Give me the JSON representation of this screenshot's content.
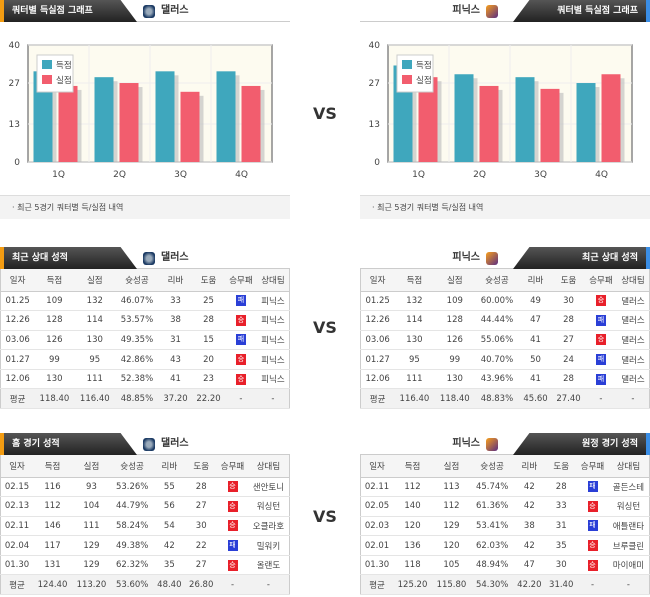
{
  "vs": "VS",
  "left": {
    "team": "댈러스",
    "graph_title": "쿼터별 득실점 그래프",
    "caption": "최근 5경기 쿼터별 득/실점 내역",
    "h2h_title": "최근 상대 성적",
    "split_title": "홈 경기 성적"
  },
  "right": {
    "team": "피닉스",
    "graph_title": "쿼터별 득실점 그래프",
    "caption": "최근 5경기 쿼터별 득/실점 내역",
    "h2h_title": "최근 상대 성적",
    "split_title": "원정 경기 성적"
  },
  "columns": [
    "일자",
    "득점",
    "실점",
    "슛성공",
    "리바",
    "도움",
    "승무패",
    "상대팀"
  ],
  "colors": {
    "scored": "#3fa7bd",
    "conceded": "#f25d6e",
    "win": "#e8202a",
    "loss": "#2a3fd6"
  },
  "chart_data": [
    {
      "type": "bar",
      "team": "댈러스",
      "categories": [
        "1Q",
        "2Q",
        "3Q",
        "4Q"
      ],
      "ylim": [
        0,
        40
      ],
      "yticks": [
        "0",
        "13",
        "27",
        "40"
      ],
      "legend": "top-left",
      "series": [
        {
          "name": "득점",
          "values": [
            31,
            29,
            31,
            31
          ]
        },
        {
          "name": "실점",
          "values": [
            26,
            27,
            24,
            26
          ]
        }
      ]
    },
    {
      "type": "bar",
      "team": "피닉스",
      "categories": [
        "1Q",
        "2Q",
        "3Q",
        "4Q"
      ],
      "ylim": [
        0,
        40
      ],
      "yticks": [
        "0",
        "13",
        "27",
        "40"
      ],
      "legend": "top-left",
      "series": [
        {
          "name": "득점",
          "values": [
            33,
            30,
            29,
            27
          ]
        },
        {
          "name": "실점",
          "values": [
            29,
            26,
            25,
            30
          ]
        }
      ]
    }
  ],
  "left_h2h": {
    "rows": [
      [
        "01.25",
        "109",
        "132",
        "46.07%",
        "33",
        "25",
        "패",
        "피닉스"
      ],
      [
        "12.26",
        "128",
        "114",
        "53.57%",
        "38",
        "28",
        "승",
        "피닉스"
      ],
      [
        "03.06",
        "126",
        "130",
        "49.35%",
        "31",
        "15",
        "패",
        "피닉스"
      ],
      [
        "01.27",
        "99",
        "95",
        "42.86%",
        "43",
        "20",
        "승",
        "피닉스"
      ],
      [
        "12.06",
        "130",
        "111",
        "52.38%",
        "41",
        "23",
        "승",
        "피닉스"
      ]
    ],
    "avg": [
      "평균",
      "118.40",
      "116.40",
      "48.85%",
      "37.20",
      "22.20",
      "-",
      "-"
    ]
  },
  "right_h2h": {
    "rows": [
      [
        "01.25",
        "132",
        "109",
        "60.00%",
        "49",
        "30",
        "승",
        "댈러스"
      ],
      [
        "12.26",
        "114",
        "128",
        "44.44%",
        "47",
        "28",
        "패",
        "댈러스"
      ],
      [
        "03.06",
        "130",
        "126",
        "55.06%",
        "41",
        "27",
        "승",
        "댈러스"
      ],
      [
        "01.27",
        "95",
        "99",
        "40.70%",
        "50",
        "24",
        "패",
        "댈러스"
      ],
      [
        "12.06",
        "111",
        "130",
        "43.96%",
        "41",
        "28",
        "패",
        "댈러스"
      ]
    ],
    "avg": [
      "평균",
      "116.40",
      "118.40",
      "48.83%",
      "45.60",
      "27.40",
      "-",
      "-"
    ]
  },
  "left_split": {
    "rows": [
      [
        "02.15",
        "116",
        "93",
        "53.26%",
        "55",
        "28",
        "승",
        "샌안토니"
      ],
      [
        "02.13",
        "112",
        "104",
        "44.79%",
        "56",
        "27",
        "승",
        "워싱턴"
      ],
      [
        "02.11",
        "146",
        "111",
        "58.24%",
        "54",
        "30",
        "승",
        "오클라호"
      ],
      [
        "02.04",
        "117",
        "129",
        "49.38%",
        "42",
        "22",
        "패",
        "밀워키"
      ],
      [
        "01.30",
        "131",
        "129",
        "62.32%",
        "35",
        "27",
        "승",
        "올랜도"
      ]
    ],
    "avg": [
      "평균",
      "124.40",
      "113.20",
      "53.60%",
      "48.40",
      "26.80",
      "-",
      "-"
    ]
  },
  "right_split": {
    "rows": [
      [
        "02.11",
        "112",
        "113",
        "45.74%",
        "42",
        "28",
        "패",
        "골든스테"
      ],
      [
        "02.05",
        "140",
        "112",
        "61.36%",
        "42",
        "33",
        "승",
        "워싱턴"
      ],
      [
        "02.03",
        "120",
        "129",
        "53.41%",
        "38",
        "31",
        "패",
        "애틀랜타"
      ],
      [
        "02.01",
        "136",
        "120",
        "62.03%",
        "42",
        "35",
        "승",
        "브루클린"
      ],
      [
        "01.30",
        "118",
        "105",
        "48.94%",
        "47",
        "30",
        "승",
        "마이애미"
      ]
    ],
    "avg": [
      "평균",
      "125.20",
      "115.80",
      "54.30%",
      "42.20",
      "31.40",
      "-",
      "-"
    ]
  }
}
